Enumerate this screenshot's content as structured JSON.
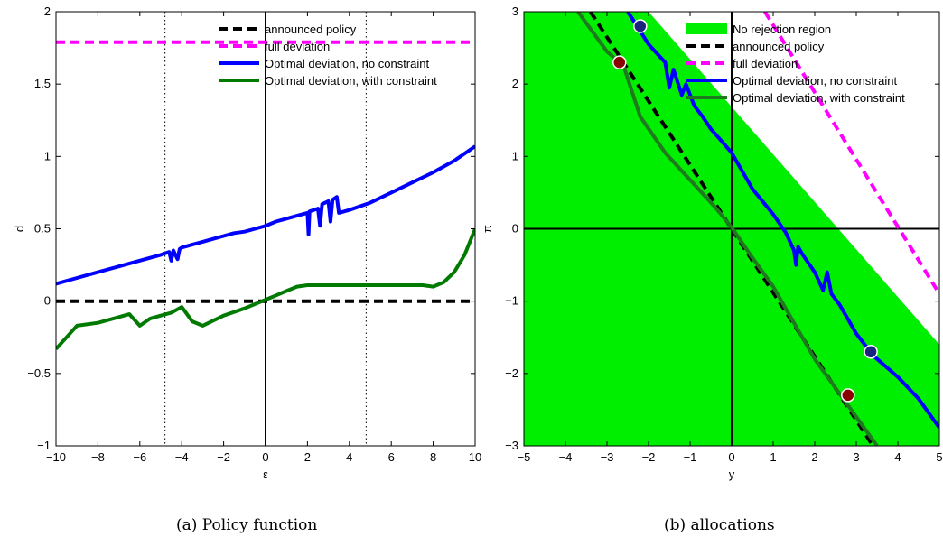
{
  "chart_data": [
    {
      "type": "line",
      "caption": "(a)  Policy function",
      "xlabel": "ε",
      "ylabel": "d",
      "xlim": [
        -10,
        10
      ],
      "ylim": [
        -1,
        2
      ],
      "xticks": [
        "−10",
        "−8",
        "−6",
        "−4",
        "−2",
        "0",
        "2",
        "4",
        "6",
        "8",
        "10"
      ],
      "yticks": [
        "−1",
        "−0.5",
        "0",
        "0.5",
        "1",
        "1.5",
        "2"
      ],
      "xtick_values": [
        -10,
        -8,
        -6,
        -4,
        -2,
        0,
        2,
        4,
        6,
        8,
        10
      ],
      "ytick_values": [
        -1,
        -0.5,
        0,
        0.5,
        1,
        1.5,
        2
      ],
      "vertical_lines": [
        {
          "x": 0,
          "style": "solid"
        },
        {
          "x": -4.8,
          "style": "dotted"
        },
        {
          "x": 4.8,
          "style": "dotted"
        }
      ],
      "legend_position": "top-right",
      "series": [
        {
          "name": "announced policy",
          "color": "#000000",
          "dash": "dashed",
          "x": [
            -10,
            10
          ],
          "y": [
            0,
            0
          ]
        },
        {
          "name": "full deviation",
          "color": "#ff00ff",
          "dash": "dashed",
          "x": [
            -10,
            10
          ],
          "y": [
            1.79,
            1.79
          ]
        },
        {
          "name": "Optimal deviation, no constraint",
          "color": "#0000ff",
          "dash": "solid",
          "x": [
            -10,
            -9,
            -8,
            -7,
            -6,
            -5,
            -4.6,
            -4.5,
            -4.4,
            -4.2,
            -4.1,
            -4,
            -3.5,
            -3,
            -2.5,
            -2,
            -1.5,
            -1,
            -0.5,
            0,
            0.5,
            1,
            1.5,
            2,
            2.05,
            2.1,
            2.5,
            2.6,
            2.7,
            3,
            3.1,
            3.2,
            3.4,
            3.5,
            4,
            5,
            6,
            7,
            8,
            9,
            10
          ],
          "y": [
            0.12,
            0.16,
            0.2,
            0.24,
            0.28,
            0.32,
            0.34,
            0.28,
            0.35,
            0.29,
            0.36,
            0.37,
            0.39,
            0.41,
            0.43,
            0.45,
            0.47,
            0.48,
            0.5,
            0.52,
            0.55,
            0.57,
            0.59,
            0.61,
            0.46,
            0.62,
            0.64,
            0.52,
            0.67,
            0.69,
            0.55,
            0.7,
            0.72,
            0.61,
            0.63,
            0.68,
            0.75,
            0.82,
            0.89,
            0.97,
            1.07
          ]
        },
        {
          "name": "Optimal deviation, with constraint",
          "color": "#007a00",
          "dash": "solid",
          "x": [
            -10,
            -9.5,
            -9,
            -8,
            -7,
            -6.5,
            -6,
            -5.5,
            -5,
            -4.5,
            -4,
            -3.5,
            -3,
            -2,
            -1,
            0,
            0.5,
            1,
            1.5,
            2,
            3,
            4,
            5,
            6,
            7,
            7.5,
            8,
            8.5,
            9,
            9.5,
            10
          ],
          "y": [
            -0.33,
            -0.25,
            -0.17,
            -0.15,
            -0.11,
            -0.09,
            -0.17,
            -0.12,
            -0.1,
            -0.08,
            -0.04,
            -0.14,
            -0.17,
            -0.1,
            -0.05,
            0.01,
            0.04,
            0.07,
            0.1,
            0.11,
            0.11,
            0.11,
            0.11,
            0.11,
            0.11,
            0.11,
            0.1,
            0.13,
            0.2,
            0.32,
            0.5
          ]
        }
      ]
    },
    {
      "type": "line",
      "caption": "(b)  allocations",
      "xlabel": "y",
      "ylabel": "π",
      "xlim": [
        -5,
        5
      ],
      "ylim": [
        -3,
        3
      ],
      "xticks": [
        "−5",
        "−4",
        "−3",
        "−2",
        "−1",
        "0",
        "1",
        "2",
        "3",
        "4",
        "5"
      ],
      "yticks": [
        "−3",
        "−2",
        "−1",
        "0",
        "1",
        "2",
        "3"
      ],
      "xtick_values": [
        -5,
        -4,
        -3,
        -2,
        -1,
        0,
        1,
        2,
        3,
        4,
        5
      ],
      "ytick_values": [
        -3,
        -2,
        -1,
        0,
        1,
        2,
        3
      ],
      "region": {
        "name": "No rejection region",
        "color": "#00ee00",
        "upper_boundary": {
          "x": [
            -2.0,
            5.0
          ],
          "y": [
            3.0,
            -1.6
          ]
        }
      },
      "axes_lines": [
        {
          "x": 0
        },
        {
          "y": 0
        }
      ],
      "legend_position": "top-right",
      "series": [
        {
          "name": "announced policy",
          "color": "#000000",
          "dash": "dashed",
          "x": [
            -3.4,
            3.4
          ],
          "y": [
            3.0,
            -3.0
          ]
        },
        {
          "name": "full deviation",
          "color": "#ff00ff",
          "dash": "dashed",
          "x": [
            0.8,
            5.0
          ],
          "y": [
            3.0,
            -0.9
          ]
        },
        {
          "name": "Optimal deviation, no constraint",
          "color": "#0000ff",
          "dash": "solid",
          "x": [
            -2.5,
            -2.0,
            -1.6,
            -1.5,
            -1.4,
            -1.2,
            -1.1,
            -0.9,
            -0.7,
            -0.5,
            -0.3,
            0,
            0.5,
            1.0,
            1.3,
            1.5,
            1.55,
            1.6,
            1.7,
            2.0,
            2.2,
            2.3,
            2.4,
            2.6,
            3.0,
            3.4,
            4.0,
            4.5,
            5.0
          ],
          "y": [
            3.0,
            2.55,
            2.3,
            1.95,
            2.2,
            1.85,
            2.0,
            1.7,
            1.55,
            1.38,
            1.25,
            1.05,
            0.55,
            0.2,
            -0.05,
            -0.3,
            -0.5,
            -0.25,
            -0.35,
            -0.6,
            -0.85,
            -0.6,
            -0.9,
            -1.05,
            -1.45,
            -1.75,
            -2.05,
            -2.35,
            -2.75
          ]
        },
        {
          "name": "Optimal deviation, with constraint",
          "color": "#1f7a1f",
          "dash": "solid",
          "x": [
            -3.7,
            -3.0,
            -2.6,
            -2.2,
            -1.9,
            -1.6,
            -1.2,
            -0.8,
            -0.4,
            0,
            0.5,
            1.0,
            1.5,
            2.0,
            2.5,
            3.0,
            3.5
          ],
          "y": [
            3.0,
            2.45,
            2.25,
            1.55,
            1.3,
            1.05,
            0.8,
            0.55,
            0.3,
            0.02,
            -0.4,
            -0.8,
            -1.3,
            -1.8,
            -2.2,
            -2.6,
            -3.0
          ]
        }
      ],
      "markers": [
        {
          "x": -2.2,
          "y": 2.8,
          "color": "#1a237e"
        },
        {
          "x": 3.35,
          "y": -1.7,
          "color": "#1a237e"
        },
        {
          "x": -2.7,
          "y": 2.3,
          "color": "#8b0000"
        },
        {
          "x": 2.8,
          "y": -2.3,
          "color": "#8b0000"
        }
      ]
    }
  ]
}
